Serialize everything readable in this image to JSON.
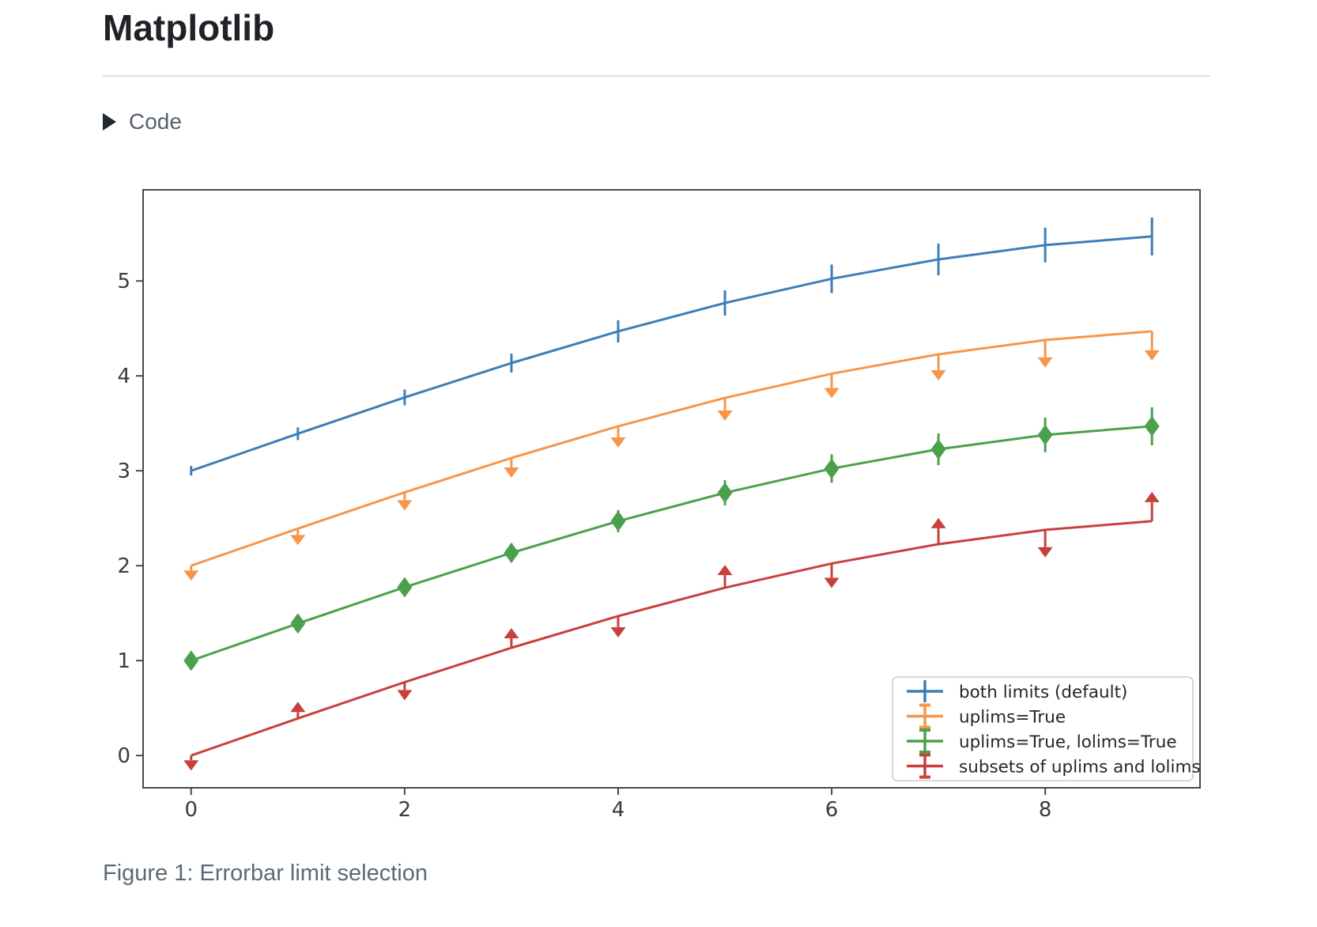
{
  "page": {
    "title": "Matplotlib",
    "code_toggle": {
      "label": "Code",
      "icon": "triangle-right-icon"
    },
    "caption": "Figure 1: Errorbar limit selection"
  },
  "chart_data": {
    "type": "line",
    "title": "",
    "xlabel": "",
    "ylabel": "",
    "x": [
      0,
      1,
      2,
      3,
      4,
      5,
      6,
      7,
      8,
      9
    ],
    "yerr": [
      0.05,
      0.067,
      0.083,
      0.1,
      0.117,
      0.133,
      0.15,
      0.167,
      0.183,
      0.2
    ],
    "series": [
      {
        "name": "both limits (default)",
        "color": "#3d7eb8",
        "limits": "both",
        "values": [
          3.0,
          3.391,
          3.773,
          4.135,
          4.469,
          4.768,
          5.023,
          5.227,
          5.378,
          5.469
        ]
      },
      {
        "name": "uplims=True",
        "color": "#f7964a",
        "limits": "uplims",
        "values": [
          2.0,
          2.391,
          2.773,
          3.135,
          3.469,
          3.768,
          4.023,
          4.227,
          4.378,
          4.469
        ]
      },
      {
        "name": "uplims=True, lolims=True",
        "color": "#4ca04c",
        "limits": "uplims+lolims",
        "values": [
          1.0,
          1.391,
          1.773,
          2.135,
          2.469,
          2.768,
          3.023,
          3.227,
          3.378,
          3.469
        ]
      },
      {
        "name": "subsets of uplims and lolims",
        "color": "#c8403d",
        "limits": "alternating",
        "uplims": [
          true,
          false,
          true,
          false,
          true,
          false,
          true,
          false,
          true,
          false
        ],
        "lolims": [
          false,
          true,
          false,
          true,
          false,
          true,
          false,
          true,
          false,
          true
        ],
        "values": [
          0.0,
          0.391,
          0.773,
          1.135,
          1.469,
          1.768,
          2.023,
          2.227,
          2.378,
          2.469
        ]
      }
    ],
    "xlim": [
      -0.45,
      9.45
    ],
    "ylim": [
      -0.34,
      5.96
    ],
    "xticks": [
      "0",
      "2",
      "4",
      "6",
      "8"
    ],
    "xtick_values": [
      0,
      2,
      4,
      6,
      8
    ],
    "yticks": [
      "0",
      "1",
      "2",
      "3",
      "4",
      "5"
    ],
    "ytick_values": [
      0,
      1,
      2,
      3,
      4,
      5
    ],
    "grid": false,
    "legend_position": "lower right",
    "colors": {
      "spine": "#4a4a4a",
      "tick_label": "#3b3b3b",
      "legend_border": "#cccccc",
      "legend_text": "#262626",
      "background": "#ffffff"
    }
  }
}
